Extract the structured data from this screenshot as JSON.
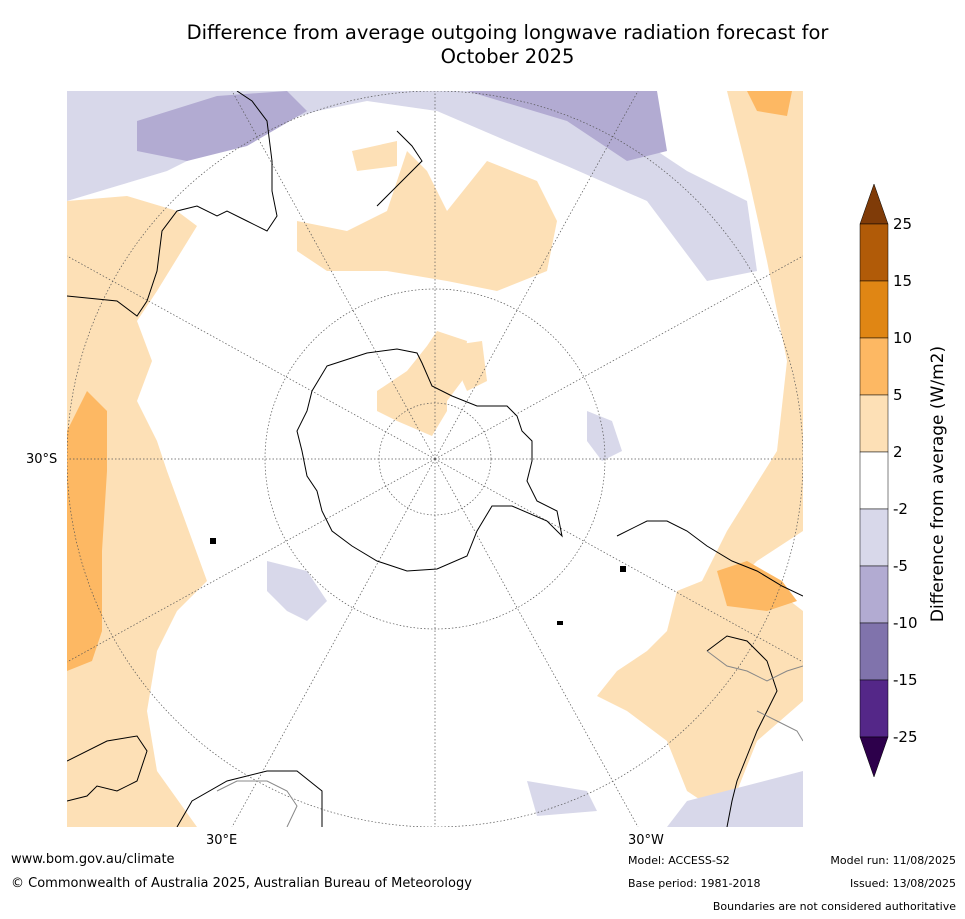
{
  "title_line1": "Difference from average outgoing longwave radiation forecast for",
  "title_line2": "October 2025",
  "map": {
    "projection": "south-polar-stereographic",
    "lon_labels": [
      "30°E",
      "30°W"
    ],
    "lat_labels": [
      "30°S"
    ]
  },
  "colorbar": {
    "label": "Difference from average (W/m2)",
    "ticks": [
      "25",
      "15",
      "10",
      "5",
      "2",
      "-2",
      "-5",
      "-10",
      "-15",
      "-25"
    ],
    "colors": [
      "#b15b08",
      "#e08614",
      "#fdb863",
      "#fde0b6",
      "#ffffff",
      "#d8d8ea",
      "#b2abd2",
      "#8073ac",
      "#542788"
    ],
    "over_color": "#7f3b08",
    "under_color": "#2d004b"
  },
  "colors": {
    "light_orange": "#fde0b6",
    "medium_orange": "#fdb863",
    "dark_orange": "#e08614",
    "light_purple": "#d8d8ea",
    "medium_purple": "#b2abd2"
  },
  "footer": {
    "website": "www.bom.gov.au/climate",
    "copyright": "© Commonwealth of Australia 2025, Australian Bureau of Meteorology",
    "model": "Model: ACCESS-S2",
    "base_period": "Base period: 1981-2018",
    "model_run": "Model run: 11/08/2025",
    "issued": "Issued: 13/08/2025",
    "disclaimer": "Boundaries are not considered authoritative"
  }
}
